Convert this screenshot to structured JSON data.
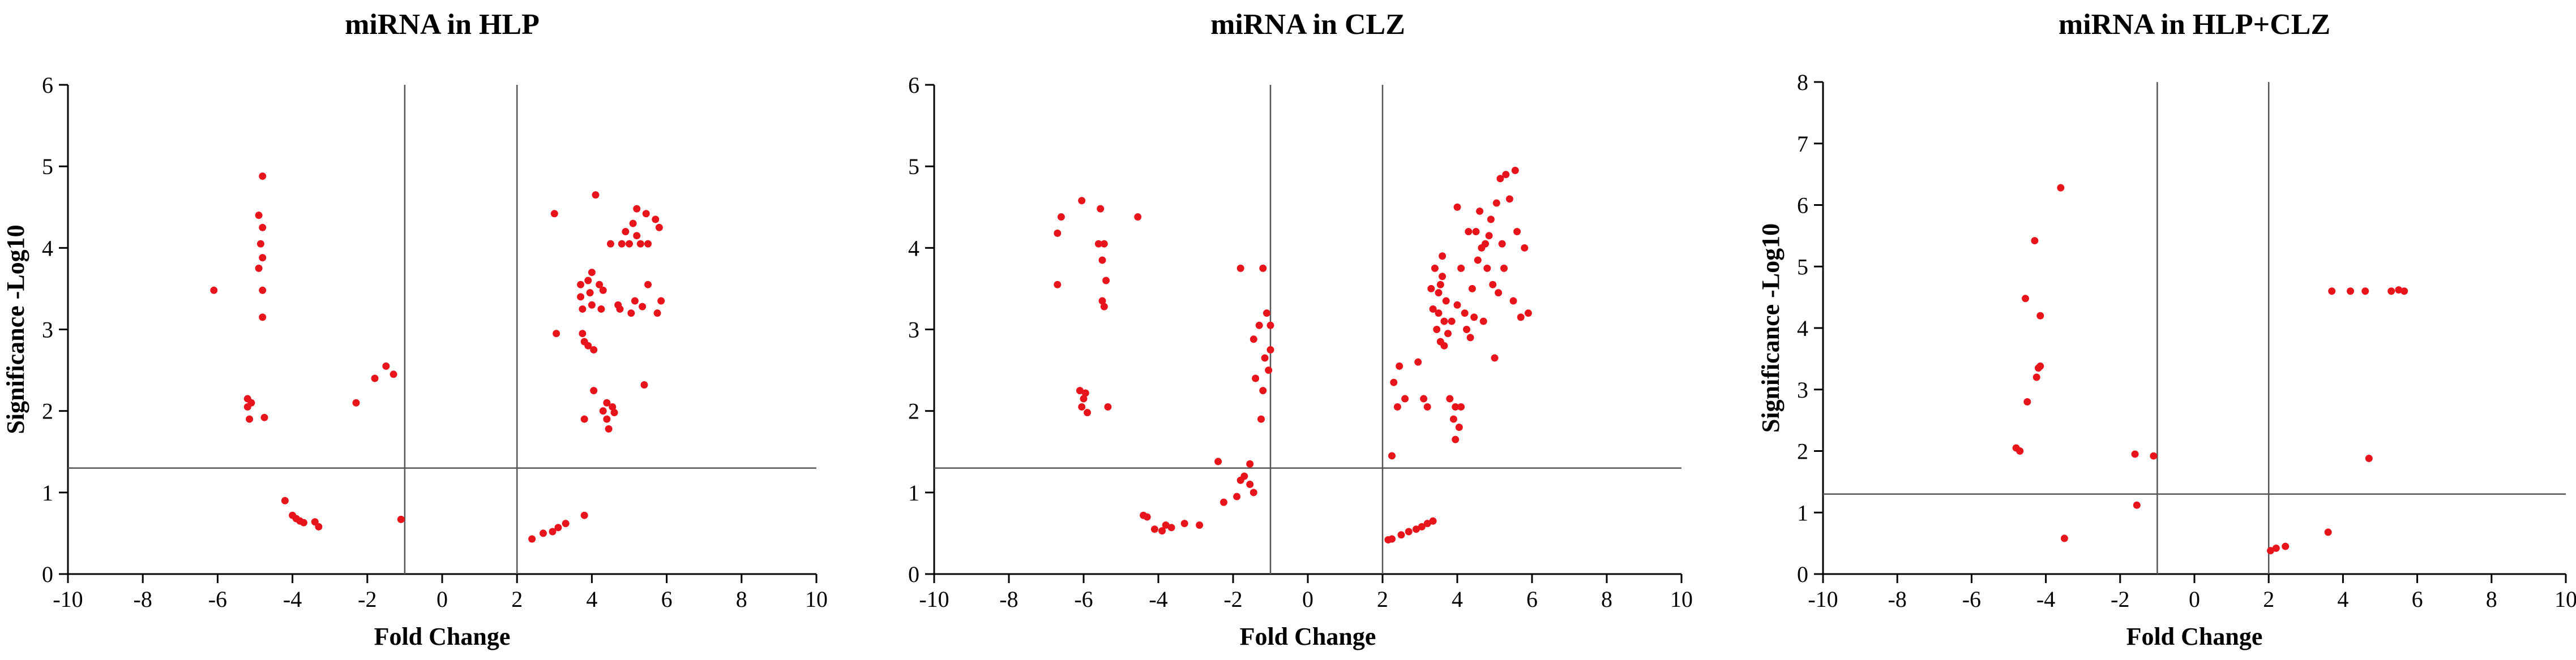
{
  "colors": {
    "points": "#e8141c",
    "axes": "#000000",
    "ref_lines": "#555555"
  },
  "chart_data": [
    {
      "type": "scatter",
      "title": "miRNA in HLP",
      "xlabel": "Fold Change",
      "ylabel": "Significance -Log10",
      "xlim": [
        -10,
        10
      ],
      "ylim": [
        0,
        6
      ],
      "xticks": [
        -10,
        -8,
        -6,
        -4,
        -2,
        0,
        2,
        4,
        6,
        8,
        10
      ],
      "yticks": [
        0,
        1,
        2,
        3,
        4,
        5,
        6
      ],
      "ref_lines": {
        "vertical": [
          -1,
          2
        ],
        "horizontal": [
          1.3
        ]
      },
      "grid": false,
      "legend": "none",
      "points": [
        [
          -6.1,
          3.48
        ],
        [
          -5.2,
          2.15
        ],
        [
          -5.2,
          2.05
        ],
        [
          -5.15,
          1.9
        ],
        [
          -5.1,
          2.1
        ],
        [
          -4.9,
          4.4
        ],
        [
          -4.9,
          3.75
        ],
        [
          -4.85,
          4.05
        ],
        [
          -4.8,
          4.88
        ],
        [
          -4.8,
          4.25
        ],
        [
          -4.8,
          3.88
        ],
        [
          -4.8,
          3.48
        ],
        [
          -4.8,
          3.15
        ],
        [
          -4.75,
          1.92
        ],
        [
          -4.2,
          0.9
        ],
        [
          -4.0,
          0.72
        ],
        [
          -3.9,
          0.68
        ],
        [
          -3.8,
          0.65
        ],
        [
          -3.7,
          0.63
        ],
        [
          -3.4,
          0.64
        ],
        [
          -3.3,
          0.58
        ],
        [
          -2.3,
          2.1
        ],
        [
          -1.8,
          2.4
        ],
        [
          -1.5,
          2.55
        ],
        [
          -1.3,
          2.45
        ],
        [
          -1.1,
          0.67
        ],
        [
          2.4,
          0.43
        ],
        [
          2.7,
          0.5
        ],
        [
          2.95,
          0.52
        ],
        [
          3.1,
          0.57
        ],
        [
          3.3,
          0.62
        ],
        [
          3.8,
          0.72
        ],
        [
          3.0,
          4.42
        ],
        [
          3.05,
          2.95
        ],
        [
          3.7,
          3.4
        ],
        [
          3.7,
          3.55
        ],
        [
          3.75,
          3.25
        ],
        [
          3.75,
          2.95
        ],
        [
          3.8,
          2.85
        ],
        [
          3.8,
          1.9
        ],
        [
          3.9,
          3.6
        ],
        [
          3.9,
          2.8
        ],
        [
          3.95,
          3.45
        ],
        [
          4.0,
          3.7
        ],
        [
          4.0,
          3.3
        ],
        [
          4.05,
          2.75
        ],
        [
          4.05,
          2.25
        ],
        [
          4.1,
          4.65
        ],
        [
          4.2,
          3.55
        ],
        [
          4.25,
          3.25
        ],
        [
          4.3,
          3.48
        ],
        [
          4.3,
          2.0
        ],
        [
          4.4,
          2.1
        ],
        [
          4.4,
          1.9
        ],
        [
          4.45,
          1.78
        ],
        [
          4.5,
          4.05
        ],
        [
          4.55,
          2.05
        ],
        [
          4.6,
          1.98
        ],
        [
          4.7,
          3.3
        ],
        [
          4.75,
          3.25
        ],
        [
          4.8,
          4.05
        ],
        [
          4.9,
          4.2
        ],
        [
          5.0,
          4.05
        ],
        [
          5.05,
          3.2
        ],
        [
          5.1,
          4.3
        ],
        [
          5.15,
          3.35
        ],
        [
          5.2,
          4.48
        ],
        [
          5.2,
          4.15
        ],
        [
          5.3,
          4.05
        ],
        [
          5.35,
          3.28
        ],
        [
          5.4,
          2.32
        ],
        [
          5.45,
          4.42
        ],
        [
          5.5,
          4.05
        ],
        [
          5.5,
          3.55
        ],
        [
          5.7,
          4.35
        ],
        [
          5.75,
          3.2
        ],
        [
          5.8,
          4.25
        ],
        [
          5.85,
          3.35
        ]
      ]
    },
    {
      "type": "scatter",
      "title": "miRNA in CLZ",
      "xlabel": "Fold Change",
      "ylabel": "",
      "xlim": [
        -10,
        10
      ],
      "ylim": [
        0,
        6
      ],
      "xticks": [
        -10,
        -8,
        -6,
        -4,
        -2,
        0,
        2,
        4,
        6,
        8,
        10
      ],
      "yticks": [
        0,
        1,
        2,
        3,
        4,
        5,
        6
      ],
      "ref_lines": {
        "vertical": [
          -1,
          2
        ],
        "horizontal": [
          1.3
        ]
      },
      "grid": false,
      "legend": "none",
      "points": [
        [
          -6.7,
          4.18
        ],
        [
          -6.6,
          4.38
        ],
        [
          -6.7,
          3.55
        ],
        [
          -6.05,
          4.58
        ],
        [
          -6.1,
          2.25
        ],
        [
          -6.0,
          2.15
        ],
        [
          -6.05,
          2.05
        ],
        [
          -5.95,
          2.22
        ],
        [
          -5.9,
          1.98
        ],
        [
          -5.6,
          4.05
        ],
        [
          -5.55,
          4.48
        ],
        [
          -5.5,
          3.85
        ],
        [
          -5.5,
          3.35
        ],
        [
          -5.45,
          4.05
        ],
        [
          -5.45,
          3.28
        ],
        [
          -5.4,
          3.6
        ],
        [
          -5.35,
          2.05
        ],
        [
          -4.55,
          4.38
        ],
        [
          -4.4,
          0.72
        ],
        [
          -4.3,
          0.7
        ],
        [
          -4.1,
          0.55
        ],
        [
          -3.9,
          0.53
        ],
        [
          -3.8,
          0.6
        ],
        [
          -3.65,
          0.57
        ],
        [
          -3.3,
          0.62
        ],
        [
          -2.9,
          0.6
        ],
        [
          -2.4,
          1.38
        ],
        [
          -2.25,
          0.88
        ],
        [
          -1.9,
          0.95
        ],
        [
          -1.8,
          1.15
        ],
        [
          -1.7,
          1.2
        ],
        [
          -1.55,
          1.35
        ],
        [
          -1.55,
          1.1
        ],
        [
          -1.45,
          1.0
        ],
        [
          -1.8,
          3.75
        ],
        [
          -1.45,
          2.88
        ],
        [
          -1.4,
          2.4
        ],
        [
          -1.3,
          3.05
        ],
        [
          -1.25,
          1.9
        ],
        [
          -1.2,
          3.75
        ],
        [
          -1.2,
          2.25
        ],
        [
          -1.15,
          2.65
        ],
        [
          -1.1,
          3.2
        ],
        [
          -1.05,
          2.5
        ],
        [
          -1.0,
          3.05
        ],
        [
          -1.0,
          2.75
        ],
        [
          2.15,
          0.42
        ],
        [
          2.25,
          0.43
        ],
        [
          2.5,
          0.48
        ],
        [
          2.7,
          0.52
        ],
        [
          2.9,
          0.55
        ],
        [
          3.05,
          0.58
        ],
        [
          3.2,
          0.62
        ],
        [
          3.35,
          0.65
        ],
        [
          2.25,
          1.45
        ],
        [
          2.3,
          2.35
        ],
        [
          2.4,
          2.05
        ],
        [
          2.45,
          2.55
        ],
        [
          2.6,
          2.15
        ],
        [
          2.95,
          2.6
        ],
        [
          3.1,
          2.15
        ],
        [
          3.2,
          2.05
        ],
        [
          3.35,
          3.25
        ],
        [
          3.4,
          3.75
        ],
        [
          3.5,
          3.45
        ],
        [
          3.55,
          2.85
        ],
        [
          3.6,
          3.9
        ],
        [
          3.6,
          3.65
        ],
        [
          3.65,
          3.1
        ],
        [
          3.7,
          3.35
        ],
        [
          3.75,
          2.95
        ],
        [
          3.8,
          2.15
        ],
        [
          3.85,
          3.1
        ],
        [
          3.9,
          1.9
        ],
        [
          3.95,
          2.05
        ],
        [
          3.95,
          1.65
        ],
        [
          4.0,
          4.5
        ],
        [
          4.0,
          3.3
        ],
        [
          4.05,
          1.8
        ],
        [
          4.1,
          3.75
        ],
        [
          4.1,
          2.05
        ],
        [
          4.2,
          3.2
        ],
        [
          4.3,
          4.2
        ],
        [
          4.4,
          3.5
        ],
        [
          4.45,
          3.15
        ],
        [
          4.5,
          4.2
        ],
        [
          4.55,
          3.85
        ],
        [
          4.6,
          4.45
        ],
        [
          4.65,
          4.0
        ],
        [
          4.7,
          3.1
        ],
        [
          4.75,
          4.05
        ],
        [
          4.8,
          3.75
        ],
        [
          4.85,
          4.15
        ],
        [
          4.9,
          4.35
        ],
        [
          4.95,
          3.55
        ],
        [
          5.0,
          2.65
        ],
        [
          5.05,
          4.55
        ],
        [
          5.1,
          3.45
        ],
        [
          5.15,
          4.85
        ],
        [
          5.2,
          4.05
        ],
        [
          5.25,
          3.75
        ],
        [
          5.3,
          4.9
        ],
        [
          5.4,
          4.6
        ],
        [
          5.5,
          3.35
        ],
        [
          5.55,
          4.95
        ],
        [
          5.6,
          4.2
        ],
        [
          5.7,
          3.15
        ],
        [
          5.8,
          4.0
        ],
        [
          5.9,
          3.2
        ],
        [
          3.3,
          3.5
        ],
        [
          3.45,
          3.0
        ],
        [
          3.5,
          3.2
        ],
        [
          3.55,
          3.55
        ],
        [
          3.65,
          2.8
        ],
        [
          4.25,
          3.0
        ],
        [
          4.35,
          2.9
        ]
      ]
    },
    {
      "type": "scatter",
      "title": "miRNA in HLP+CLZ",
      "xlabel": "Fold Change",
      "ylabel": "Significance -Log10",
      "xlim": [
        -10,
        10
      ],
      "ylim": [
        0,
        8
      ],
      "xticks": [
        -10,
        -8,
        -6,
        -4,
        -2,
        0,
        2,
        4,
        6,
        8,
        10
      ],
      "yticks": [
        0,
        1,
        2,
        3,
        4,
        5,
        6,
        7,
        8
      ],
      "ref_lines": {
        "vertical": [
          -1,
          2
        ],
        "horizontal": [
          1.3
        ]
      },
      "grid": false,
      "legend": "none",
      "points": [
        [
          -4.8,
          2.05
        ],
        [
          -4.7,
          2.0
        ],
        [
          -4.55,
          4.48
        ],
        [
          -4.5,
          2.8
        ],
        [
          -4.3,
          5.42
        ],
        [
          -4.25,
          3.2
        ],
        [
          -4.2,
          3.35
        ],
        [
          -4.15,
          4.2
        ],
        [
          -4.15,
          3.38
        ],
        [
          -3.6,
          6.28
        ],
        [
          -3.5,
          0.58
        ],
        [
          -1.6,
          1.95
        ],
        [
          -1.55,
          1.12
        ],
        [
          -1.1,
          1.92
        ],
        [
          2.05,
          0.38
        ],
        [
          2.2,
          0.42
        ],
        [
          2.45,
          0.45
        ],
        [
          3.6,
          0.68
        ],
        [
          3.7,
          4.6
        ],
        [
          4.2,
          4.6
        ],
        [
          4.6,
          4.6
        ],
        [
          4.7,
          1.88
        ],
        [
          5.3,
          4.6
        ],
        [
          5.5,
          4.62
        ],
        [
          5.65,
          4.6
        ]
      ]
    }
  ]
}
